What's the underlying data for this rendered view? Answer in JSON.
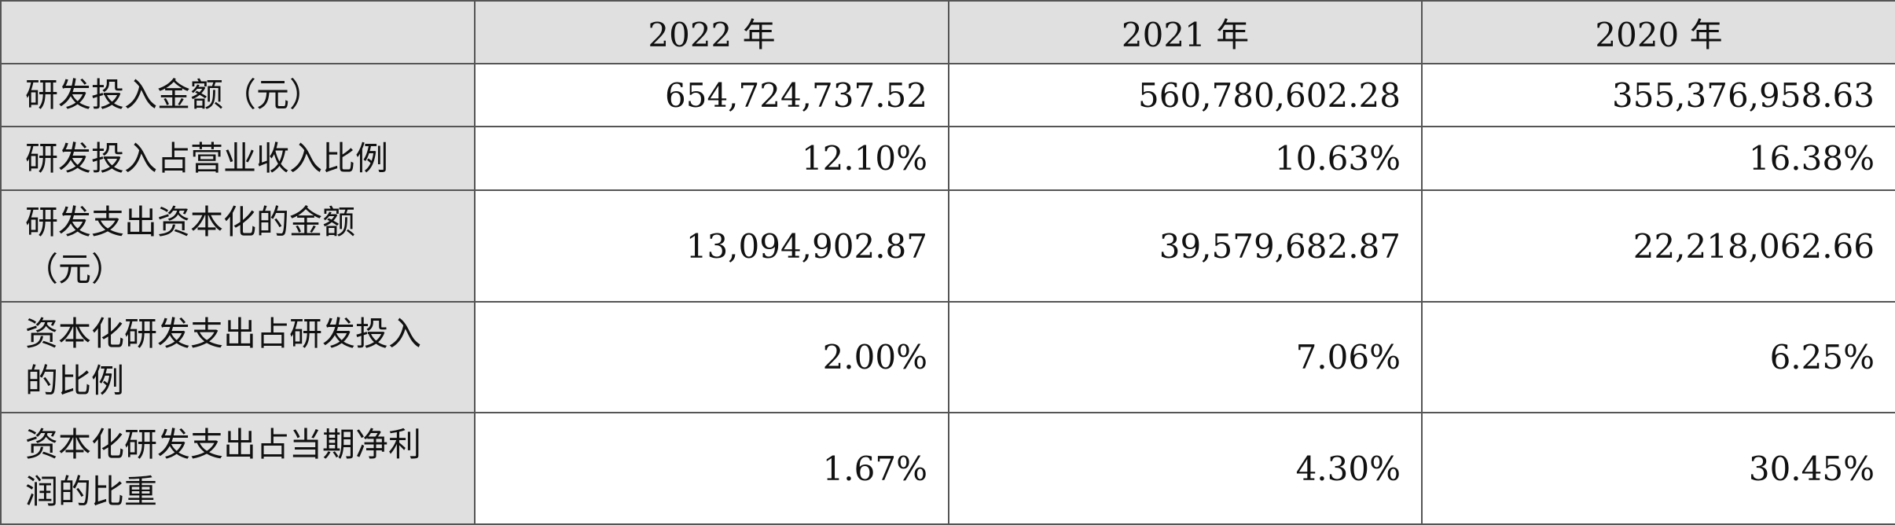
{
  "table": {
    "header": [
      "2022 年",
      "2021 年",
      "2020 年"
    ],
    "rows": [
      {
        "label": [
          "研发投入金额（元）"
        ],
        "values": [
          "654,724,737.52",
          "560,780,602.28",
          "355,376,958.63"
        ]
      },
      {
        "label": [
          "研发投入占营业收入比例"
        ],
        "values": [
          "12.10%",
          "10.63%",
          "16.38%"
        ]
      },
      {
        "label": [
          "研发支出资本化的金额",
          "（元）"
        ],
        "values": [
          "13,094,902.87",
          "39,579,682.87",
          "22,218,062.66"
        ]
      },
      {
        "label": [
          "资本化研发支出占研发投入",
          "的比例"
        ],
        "values": [
          "2.00%",
          "7.06%",
          "6.25%"
        ]
      },
      {
        "label": [
          "资本化研发支出占当期净利",
          "润的比重"
        ],
        "values": [
          "1.67%",
          "4.30%",
          "30.45%"
        ]
      }
    ]
  }
}
